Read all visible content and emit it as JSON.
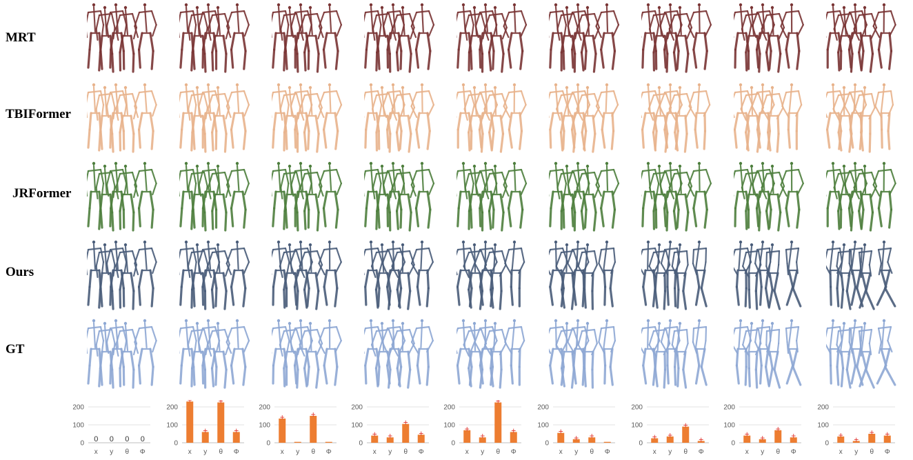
{
  "rows": [
    {
      "label": "MRT",
      "color": "#7a3535"
    },
    {
      "label": "TBIFormer",
      "color": "#e8b38c"
    },
    {
      "label": "JRFormer",
      "color": "#4e7f3e"
    },
    {
      "label": "Ours",
      "color": "#4a5d7a"
    },
    {
      "label": "GT",
      "color": "#8ea8d4"
    }
  ],
  "bar_color": "#ed7d31",
  "chart_data": [
    {
      "type": "bar",
      "categories": [
        "x",
        "y",
        "θ",
        "Φ"
      ],
      "values": [
        0,
        0,
        0,
        0
      ],
      "ylim": [
        0,
        200
      ],
      "yticks": [
        0,
        100,
        200
      ],
      "data_labels": [
        "0",
        "0",
        "0",
        "0"
      ]
    },
    {
      "type": "bar",
      "categories": [
        "x",
        "y",
        "θ",
        "Φ"
      ],
      "values": [
        232,
        60,
        225,
        60
      ],
      "ylim": [
        0,
        200
      ],
      "yticks": [
        0,
        100,
        200
      ]
    },
    {
      "type": "bar",
      "categories": [
        "x",
        "y",
        "θ",
        "Φ"
      ],
      "values": [
        135,
        5,
        150,
        5
      ],
      "ylim": [
        0,
        200
      ],
      "yticks": [
        0,
        100,
        200
      ]
    },
    {
      "type": "bar",
      "categories": [
        "x",
        "y",
        "θ",
        "Φ"
      ],
      "values": [
        40,
        30,
        105,
        45
      ],
      "ylim": [
        0,
        200
      ],
      "yticks": [
        0,
        100,
        200
      ]
    },
    {
      "type": "bar",
      "categories": [
        "x",
        "y",
        "θ",
        "Φ"
      ],
      "values": [
        70,
        30,
        225,
        60
      ],
      "ylim": [
        0,
        200
      ],
      "yticks": [
        0,
        100,
        200
      ]
    },
    {
      "type": "bar",
      "categories": [
        "x",
        "y",
        "θ",
        "Φ"
      ],
      "values": [
        55,
        20,
        30,
        5
      ],
      "ylim": [
        0,
        200
      ],
      "yticks": [
        0,
        100,
        200
      ]
    },
    {
      "type": "bar",
      "categories": [
        "x",
        "y",
        "θ",
        "Φ"
      ],
      "values": [
        25,
        35,
        90,
        10
      ],
      "ylim": [
        0,
        200
      ],
      "yticks": [
        0,
        100,
        200
      ]
    },
    {
      "type": "bar",
      "categories": [
        "x",
        "y",
        "θ",
        "Φ"
      ],
      "values": [
        40,
        20,
        70,
        30
      ],
      "ylim": [
        0,
        200
      ],
      "yticks": [
        0,
        100,
        200
      ]
    },
    {
      "type": "bar",
      "categories": [
        "x",
        "y",
        "θ",
        "Φ"
      ],
      "values": [
        35,
        10,
        50,
        40
      ],
      "ylim": [
        0,
        200
      ],
      "yticks": [
        0,
        100,
        200
      ]
    }
  ]
}
